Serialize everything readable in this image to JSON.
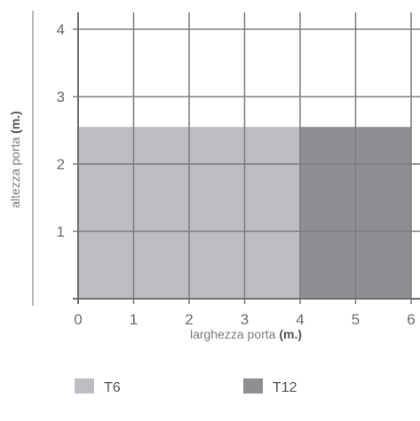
{
  "chart_data": {
    "type": "area",
    "xlabel": "larghezza porta",
    "ylabel": "altezza porta",
    "unit": "(m.)",
    "xlim": [
      0,
      6
    ],
    "ylim": [
      0,
      4.25
    ],
    "xticks": [
      "0",
      "1",
      "2",
      "3",
      "4",
      "5",
      "6"
    ],
    "yticks": [
      "1",
      "2",
      "3",
      "4"
    ],
    "grid": true,
    "legend_position": "bottom",
    "series": [
      {
        "name": "T6",
        "x_range": [
          0,
          4
        ],
        "height": 2.55,
        "color": "#bcbdc0"
      },
      {
        "name": "T12",
        "x_range": [
          4,
          6
        ],
        "height": 2.55,
        "color": "#8e8f92"
      }
    ]
  }
}
